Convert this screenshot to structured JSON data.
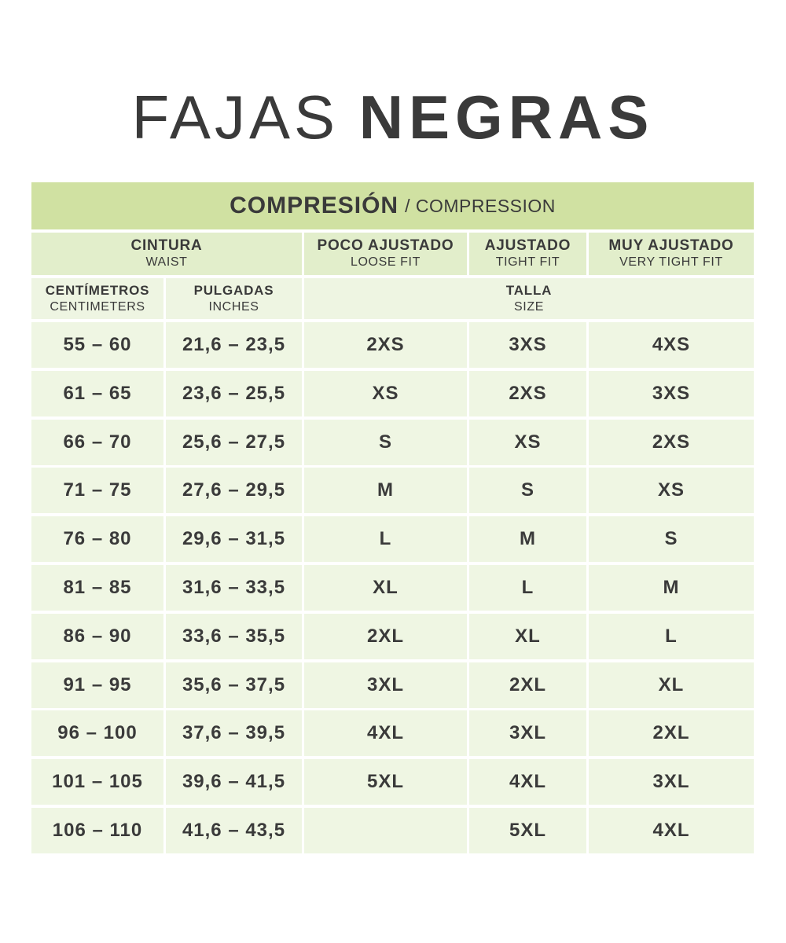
{
  "title": {
    "light": "FAJAS",
    "bold": "NEGRAS"
  },
  "colors": {
    "header_green": "#d0e1a2",
    "subheader_green": "#e2eecb",
    "cell_green": "#eff6e3",
    "text": "#3a3a3a"
  },
  "table": {
    "compression": {
      "main": "COMPRESIÓN",
      "sub": "/ COMPRESSION"
    },
    "group_headers": [
      {
        "main": "CINTURA",
        "sub": "WAIST"
      },
      {
        "main": "POCO AJUSTADO",
        "sub": "LOOSE FIT"
      },
      {
        "main": "AJUSTADO",
        "sub": "TIGHT FIT"
      },
      {
        "main": "MUY AJUSTADO",
        "sub": "VERY TIGHT FIT"
      }
    ],
    "unit_headers": [
      {
        "main": "CENTÍMETROS",
        "sub": "CENTIMETERS"
      },
      {
        "main": "PULGADAS",
        "sub": "INCHES"
      },
      {
        "main": "TALLA",
        "sub": "SIZE"
      }
    ],
    "columns": [
      "centimeters",
      "inches",
      "loose_fit",
      "tight_fit",
      "very_tight_fit"
    ],
    "rows": [
      [
        "55 – 60",
        "21,6 – 23,5",
        "2XS",
        "3XS",
        "4XS"
      ],
      [
        "61 – 65",
        "23,6 – 25,5",
        "XS",
        "2XS",
        "3XS"
      ],
      [
        "66 – 70",
        "25,6 – 27,5",
        "S",
        "XS",
        "2XS"
      ],
      [
        "71 – 75",
        "27,6 – 29,5",
        "M",
        "S",
        "XS"
      ],
      [
        "76 – 80",
        "29,6 – 31,5",
        "L",
        "M",
        "S"
      ],
      [
        "81 – 85",
        "31,6 – 33,5",
        "XL",
        "L",
        "M"
      ],
      [
        "86 – 90",
        "33,6 – 35,5",
        "2XL",
        "XL",
        "L"
      ],
      [
        "91 – 95",
        "35,6 – 37,5",
        "3XL",
        "2XL",
        "XL"
      ],
      [
        "96 – 100",
        "37,6 – 39,5",
        "4XL",
        "3XL",
        "2XL"
      ],
      [
        "101 – 105",
        "39,6 – 41,5",
        "5XL",
        "4XL",
        "3XL"
      ],
      [
        "106 – 110",
        "41,6 – 43,5",
        "",
        "5XL",
        "4XL"
      ]
    ]
  }
}
